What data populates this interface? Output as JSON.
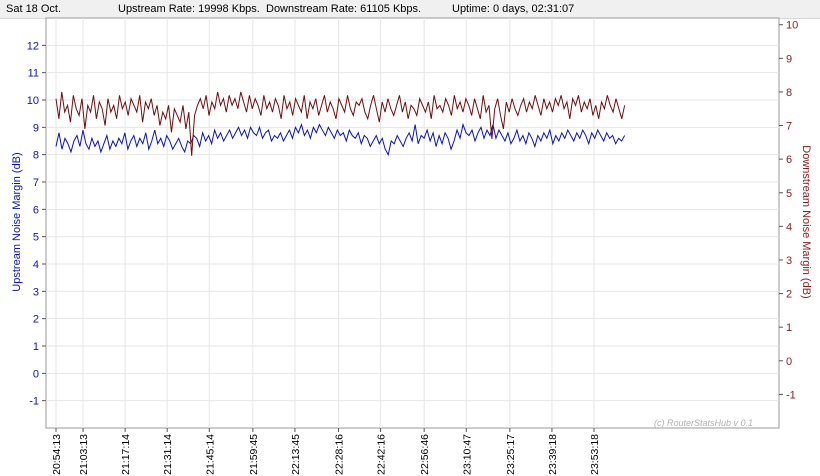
{
  "status": {
    "date": "Sat 18 Oct.",
    "upstream_rate": "Upstream Rate: 19998 Kbps.",
    "downstream_rate": "Downstream Rate: 61105 Kbps.",
    "uptime": "Uptime: 0 days, 02:31:07"
  },
  "watermark": "(c) RouterStatsHub v 0.1",
  "colors": {
    "upstream": "#0a14b4",
    "downstream": "#6b0f0f",
    "grid": "#e6e6e6"
  },
  "chart_data": {
    "type": "line",
    "xlabel": "",
    "ylabel_left": "Upstream Noise Margin (dB)",
    "ylabel_right": "Downstream Noise Margin (dB)",
    "y_left_range": [
      -2,
      13
    ],
    "y_left_ticks": [
      "-1",
      "0",
      "1",
      "2",
      "3",
      "4",
      "5",
      "6",
      "7",
      "8",
      "9",
      "10",
      "11",
      "12"
    ],
    "y_right_range": [
      -2,
      10.2
    ],
    "y_right_ticks": [
      "-1",
      "0",
      "1",
      "2",
      "3",
      "4",
      "5",
      "6",
      "7",
      "8",
      "9",
      "10"
    ],
    "x_ticks": [
      "20:54:13",
      "21:03:13",
      "21:17:14",
      "21:31:14",
      "21:45:14",
      "21:59:45",
      "22:13:45",
      "22:28:16",
      "22:42:16",
      "22:56:46",
      "23:10:47",
      "23:25:17",
      "23:39:18",
      "23:53:18"
    ],
    "x_tick_times": [
      "20:54:13",
      "21:03:13",
      "21:17:14",
      "21:31:14",
      "21:45:14",
      "21:59:45",
      "22:13:45",
      "22:28:16",
      "22:42:16",
      "22:56:46",
      "23:10:47",
      "23:25:17",
      "23:39:18",
      "23:53:18"
    ],
    "grid": true,
    "legend": "none",
    "series": [
      {
        "axis": "left",
        "start": "20:54:13",
        "end": "00:03:30",
        "values": [
          8.3,
          8.8,
          8.2,
          8.6,
          8.4,
          8.1,
          8.5,
          8.7,
          8.3,
          8.9,
          8.4,
          8.2,
          8.6,
          8.3,
          8.5,
          8.1,
          8.4,
          8.7,
          8.2,
          8.5,
          8.3,
          8.6,
          8.4,
          8.8,
          8.2,
          8.5,
          8.7,
          8.3,
          8.6,
          8.4,
          8.8,
          8.2,
          8.5,
          8.9,
          8.4,
          8.6,
          8.3,
          8.7,
          8.5,
          8.2,
          8.4,
          8.6,
          8.3,
          8.1,
          8.5,
          8.4,
          8.7,
          8.6,
          8.3,
          8.8,
          8.5,
          8.7,
          8.4,
          8.9,
          8.6,
          8.8,
          8.5,
          8.7,
          8.9,
          8.6,
          8.8,
          9.0,
          8.7,
          8.9,
          8.6,
          9.0,
          8.8,
          8.7,
          9.0,
          8.6,
          8.8,
          8.9,
          8.5,
          8.7,
          8.6,
          8.8,
          8.5,
          8.7,
          8.9,
          8.6,
          9.0,
          8.8,
          9.1,
          8.7,
          8.9,
          8.6,
          9.0,
          8.8,
          9.1,
          8.9,
          8.7,
          9.0,
          8.8,
          8.6,
          8.9,
          8.7,
          8.8,
          8.5,
          8.9,
          8.7,
          8.6,
          8.8,
          8.4,
          8.7,
          8.6,
          8.3,
          8.5,
          8.7,
          8.4,
          8.6,
          8.2,
          8.0,
          8.5,
          8.4,
          8.7,
          8.5,
          8.3,
          8.6,
          8.8,
          8.5,
          9.1,
          8.4,
          8.7,
          8.6,
          8.9,
          8.5,
          8.8,
          8.3,
          8.7,
          8.4,
          8.8,
          8.6,
          8.2,
          8.5,
          8.9,
          8.6,
          9.1,
          8.8,
          8.7,
          8.9,
          8.5,
          8.8,
          9.0,
          8.6,
          8.9,
          8.7,
          9.1,
          8.6,
          8.9,
          8.7,
          8.5,
          8.8,
          8.4,
          8.6,
          8.9,
          8.5,
          8.7,
          8.4,
          8.8,
          8.6,
          8.3,
          8.7,
          8.5,
          8.8,
          8.6,
          8.9,
          8.4,
          8.7,
          8.5,
          8.8,
          8.6,
          8.9,
          8.7,
          8.5,
          8.8,
          8.6,
          8.9,
          8.7,
          8.4,
          8.8,
          8.6,
          8.9,
          8.7,
          8.5,
          8.8,
          8.6,
          8.7,
          8.4,
          8.6,
          8.5,
          8.7
        ]
      },
      {
        "axis": "right",
        "start": "20:54:13",
        "end": "00:03:30",
        "values": [
          7.8,
          7.2,
          8.0,
          7.4,
          7.6,
          7.1,
          7.9,
          7.5,
          7.3,
          7.8,
          6.9,
          7.6,
          7.4,
          7.9,
          7.2,
          7.7,
          7.5,
          7.0,
          7.8,
          7.4,
          7.6,
          7.2,
          7.9,
          7.5,
          7.7,
          7.3,
          7.8,
          7.6,
          7.4,
          7.9,
          7.1,
          7.7,
          7.5,
          7.8,
          7.3,
          7.6,
          7.0,
          7.4,
          7.2,
          7.6,
          6.8,
          7.5,
          7.3,
          7.1,
          7.6,
          6.9,
          7.4,
          6.1,
          7.3,
          7.6,
          7.8,
          7.5,
          7.9,
          7.3,
          7.7,
          7.5,
          8.0,
          7.6,
          7.8,
          7.4,
          7.9,
          7.6,
          7.8,
          7.5,
          8.0,
          7.7,
          7.4,
          7.9,
          7.5,
          7.8,
          7.6,
          7.3,
          7.9,
          7.5,
          7.7,
          7.4,
          7.8,
          7.6,
          7.2,
          7.9,
          7.5,
          7.7,
          7.3,
          7.8,
          7.6,
          7.4,
          7.9,
          7.2,
          7.7,
          7.5,
          7.8,
          7.3,
          7.6,
          7.9,
          7.4,
          7.7,
          7.5,
          7.2,
          7.8,
          7.6,
          7.4,
          7.9,
          7.5,
          7.3,
          7.7,
          7.6,
          7.8,
          7.4,
          7.2,
          7.6,
          7.9,
          7.5,
          7.1,
          7.7,
          7.4,
          7.8,
          7.5,
          7.3,
          7.6,
          7.9,
          7.4,
          7.7,
          7.2,
          7.6,
          7.5,
          7.3,
          7.8,
          7.6,
          7.4,
          7.7,
          7.2,
          7.9,
          7.5,
          7.6,
          7.4,
          7.8,
          7.6,
          7.3,
          7.9,
          7.5,
          7.7,
          7.4,
          7.8,
          7.6,
          7.3,
          7.8,
          7.5,
          7.2,
          7.9,
          7.4,
          7.6,
          6.6,
          7.5,
          7.8,
          7.3,
          6.9,
          7.7,
          7.4,
          7.8,
          7.5,
          7.3,
          7.6,
          7.8,
          7.4,
          7.7,
          7.5,
          7.9,
          7.6,
          7.3,
          7.8,
          7.5,
          7.7,
          7.4,
          7.8,
          7.6,
          7.9,
          7.5,
          7.7,
          7.2,
          7.8,
          7.6,
          7.9,
          7.4,
          7.7,
          7.5,
          7.8,
          7.3,
          7.6,
          7.2,
          7.7,
          7.5,
          7.9,
          7.6,
          7.4,
          7.8,
          7.5,
          7.2,
          7.6
        ]
      }
    ]
  }
}
